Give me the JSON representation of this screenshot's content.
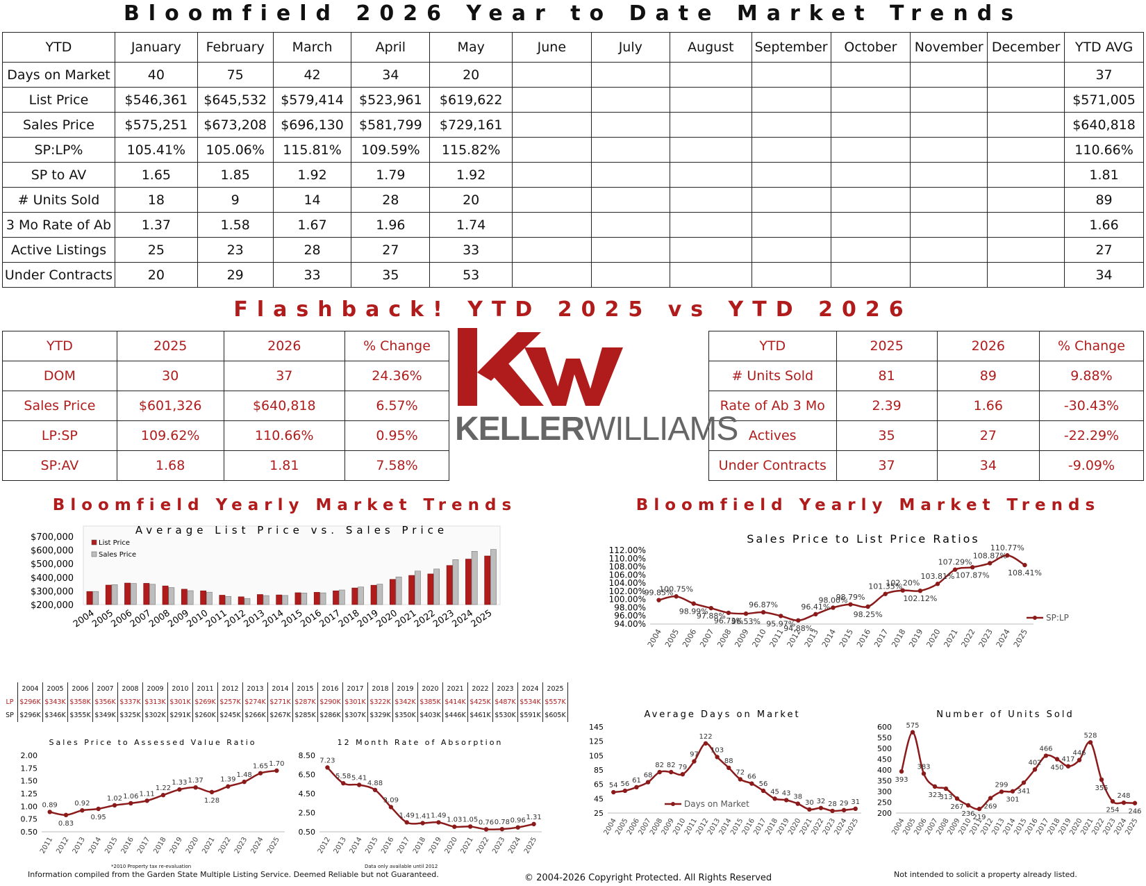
{
  "main_title": "Bloomfield 2026 Year to Date Market Trends",
  "ytd_table": {
    "headers": [
      "YTD",
      "January",
      "February",
      "March",
      "April",
      "May",
      "June",
      "July",
      "August",
      "September",
      "October",
      "November",
      "December",
      "YTD AVG"
    ],
    "rows": [
      [
        "Days on Market",
        "40",
        "75",
        "42",
        "34",
        "20",
        "",
        "",
        "",
        "",
        "",
        "",
        "",
        "37"
      ],
      [
        "List Price",
        "$546,361",
        "$645,532",
        "$579,414",
        "$523,961",
        "$619,622",
        "",
        "",
        "",
        "",
        "",
        "",
        "",
        "$571,005"
      ],
      [
        "Sales Price",
        "$575,251",
        "$673,208",
        "$696,130",
        "$581,799",
        "$729,161",
        "",
        "",
        "",
        "",
        "",
        "",
        "",
        "$640,818"
      ],
      [
        "SP:LP%",
        "105.41%",
        "105.06%",
        "115.81%",
        "109.59%",
        "115.82%",
        "",
        "",
        "",
        "",
        "",
        "",
        "",
        "110.66%"
      ],
      [
        "SP to AV",
        "1.65",
        "1.85",
        "1.92",
        "1.79",
        "1.92",
        "",
        "",
        "",
        "",
        "",
        "",
        "",
        "1.81"
      ],
      [
        "# Units Sold",
        "18",
        "9",
        "14",
        "28",
        "20",
        "",
        "",
        "",
        "",
        "",
        "",
        "",
        "89"
      ],
      [
        "3 Mo Rate of Ab",
        "1.37",
        "1.58",
        "1.67",
        "1.96",
        "1.74",
        "",
        "",
        "",
        "",
        "",
        "",
        "",
        "1.66"
      ],
      [
        "Active Listings",
        "25",
        "23",
        "28",
        "27",
        "33",
        "",
        "",
        "",
        "",
        "",
        "",
        "",
        "27"
      ],
      [
        "Under Contracts",
        "20",
        "29",
        "33",
        "35",
        "53",
        "",
        "",
        "",
        "",
        "",
        "",
        "",
        "34"
      ]
    ]
  },
  "flashback_title": "Flashback! YTD 2025 vs YTD 2026",
  "flashback_left": {
    "headers": [
      "YTD",
      "2025",
      "2026",
      "% Change"
    ],
    "rows": [
      [
        "DOM",
        "30",
        "37",
        "24.36%"
      ],
      [
        "Sales Price",
        "$601,326",
        "$640,818",
        "6.57%"
      ],
      [
        "LP:SP",
        "109.62%",
        "110.66%",
        "0.95%"
      ],
      [
        "SP:AV",
        "1.68",
        "1.81",
        "7.58%"
      ]
    ]
  },
  "flashback_right": {
    "headers": [
      "YTD",
      "2025",
      "2026",
      "% Change"
    ],
    "rows": [
      [
        "# Units Sold",
        "81",
        "89",
        "9.88%"
      ],
      [
        "Rate of Ab 3 Mo",
        "2.39",
        "1.66",
        "-30.43%"
      ],
      [
        "Actives",
        "35",
        "27",
        "-22.29%"
      ],
      [
        "Under Contracts",
        "37",
        "34",
        "-9.09%"
      ]
    ]
  },
  "logo": {
    "mark": "KW",
    "wordmark_bold": "KELLER",
    "wordmark_light": "WILLIAMS",
    "color": "#b01c1c"
  },
  "section_title_left": "Bloomfield Yearly Market Trends",
  "section_title_right": "Bloomfield Yearly Market Trends",
  "mini_table": {
    "years": [
      "2004",
      "2005",
      "2006",
      "2007",
      "2008",
      "2009",
      "2010",
      "2011",
      "2012",
      "2013",
      "2014",
      "2015",
      "2016",
      "2017",
      "2018",
      "2019",
      "2020",
      "2021",
      "2022",
      "2023",
      "2024",
      "2025"
    ],
    "lp_label": "LP",
    "sp_label": "SP",
    "lp": [
      "$296K",
      "$343K",
      "$358K",
      "$356K",
      "$337K",
      "$313K",
      "$301K",
      "$269K",
      "$257K",
      "$274K",
      "$271K",
      "$287K",
      "$290K",
      "$301K",
      "$322K",
      "$342K",
      "$385K",
      "$414K",
      "$425K",
      "$487K",
      "$534K",
      "$557K"
    ],
    "sp": [
      "$296K",
      "$346K",
      "$355K",
      "$349K",
      "$325K",
      "$302K",
      "$291K",
      "$260K",
      "$245K",
      "$266K",
      "$267K",
      "$285K",
      "$286K",
      "$307K",
      "$329K",
      "$350K",
      "$403K",
      "$446K",
      "$461K",
      "$530K",
      "$591K",
      "$605K"
    ]
  },
  "chart_data": [
    {
      "type": "bar",
      "title": "Average List Price vs. Sales Price",
      "categories": [
        "2004",
        "2005",
        "2006",
        "2007",
        "2008",
        "2009",
        "2010",
        "2011",
        "2012",
        "2013",
        "2014",
        "2015",
        "2016",
        "2017",
        "2018",
        "2019",
        "2020",
        "2021",
        "2022",
        "2023",
        "2024",
        "2025"
      ],
      "series": [
        {
          "name": "List Price",
          "color": "#b01c1c",
          "values": [
            296000,
            343000,
            358000,
            356000,
            337000,
            313000,
            301000,
            269000,
            257000,
            274000,
            271000,
            287000,
            290000,
            301000,
            322000,
            342000,
            385000,
            414000,
            425000,
            487000,
            534000,
            557000
          ]
        },
        {
          "name": "Sales Price",
          "color": "#bdbdbd",
          "values": [
            296000,
            346000,
            355000,
            349000,
            325000,
            302000,
            291000,
            260000,
            245000,
            266000,
            267000,
            285000,
            286000,
            307000,
            329000,
            350000,
            403000,
            446000,
            461000,
            530000,
            591000,
            605000
          ]
        }
      ],
      "yticks": [
        "$700,000",
        "$600,000",
        "$500,000",
        "$400,000",
        "$300,000",
        "$200,000"
      ],
      "ylim": [
        200000,
        700000
      ],
      "legend": "top-left"
    },
    {
      "type": "line",
      "title": "Sales Price to List Price Ratios",
      "categories": [
        "2004",
        "2005",
        "2006",
        "2007",
        "2008",
        "2009",
        "2010",
        "2011",
        "2012",
        "2013",
        "2014",
        "2015",
        "2016",
        "2017",
        "2018",
        "2019",
        "2020",
        "2021",
        "2022",
        "2023",
        "2024",
        "2025"
      ],
      "series": [
        {
          "name": "SP:LP",
          "color": "#8b1a1a",
          "values": [
            99.85,
            100.75,
            98.99,
            97.88,
            96.73,
            96.53,
            96.87,
            95.97,
            94.88,
            96.41,
            98.0,
            98.79,
            98.25,
            101.35,
            102.2,
            102.12,
            103.81,
            107.29,
            107.87,
            108.87,
            110.77,
            108.41
          ]
        }
      ],
      "labels": [
        "99.85%",
        "100.75%",
        "98.99%",
        "97.88%",
        "96.73%",
        "96.53%",
        "96.87%",
        "95.97%",
        "94.88%",
        "96.41%",
        "98.00%",
        "98.79%",
        "98.25%",
        "101.35%",
        "102.20%",
        "102.12%",
        "103.81%",
        "107.29%",
        "107.87%",
        "108.87%",
        "110.77%",
        "108.41%"
      ],
      "yticks": [
        "112.00%",
        "110.00%",
        "108.00%",
        "106.00%",
        "104.00%",
        "102.00%",
        "100.00%",
        "98.00%",
        "96.00%",
        "94.00%"
      ],
      "ylim": [
        94,
        112
      ],
      "legend": "right"
    },
    {
      "type": "line",
      "title": "Sales Price to Assessed Value Ratio",
      "categories": [
        "2011",
        "2012",
        "2013",
        "2014",
        "2015",
        "2016",
        "2017",
        "2018",
        "2019",
        "2020",
        "2021",
        "2022",
        "2023",
        "2024",
        "2025"
      ],
      "series": [
        {
          "name": "",
          "color": "#8b1a1a",
          "values": [
            0.89,
            0.83,
            0.92,
            0.95,
            1.02,
            1.06,
            1.11,
            1.22,
            1.33,
            1.37,
            1.28,
            1.39,
            1.48,
            1.65,
            1.7
          ]
        }
      ],
      "labels": [
        "0.89",
        "0.83",
        "0.92",
        "0.95",
        "1.02",
        "1.06",
        "1.11",
        "1.22",
        "1.33",
        "1.37",
        "1.28",
        "1.39",
        "1.48",
        "1.65",
        "1.70"
      ],
      "yticks": [
        "2.00",
        "1.75",
        "1.50",
        "1.25",
        "1.00",
        "0.75",
        "0.50"
      ],
      "ylim": [
        0.5,
        2.0
      ],
      "note": "*2010 Property tax re-evaluation"
    },
    {
      "type": "line",
      "title": "12 Month Rate of Absorption",
      "categories": [
        "2012",
        "2013",
        "2014",
        "2015",
        "2016",
        "2017",
        "2018",
        "2019",
        "2020",
        "2021",
        "2022",
        "2023",
        "2024",
        "2025"
      ],
      "series": [
        {
          "name": "",
          "color": "#8b1a1a",
          "values": [
            7.23,
            5.58,
            5.41,
            4.88,
            3.09,
            1.49,
            1.41,
            1.49,
            1.03,
            1.05,
            0.76,
            0.78,
            0.96,
            1.31
          ]
        }
      ],
      "labels": [
        "7.23",
        "5.58",
        "5.41",
        "4.88",
        "3.09",
        "1.49",
        "1.41",
        "1.49",
        "1.03",
        "1.05",
        "0.76",
        "0.78",
        "0.96",
        "1.31"
      ],
      "yticks": [
        "8.50",
        "6.50",
        "4.50",
        "2.50",
        "0.50"
      ],
      "ylim": [
        0.5,
        8.5
      ],
      "note": "Data only available until 2012"
    },
    {
      "type": "line",
      "title": "Average Days on Market",
      "categories": [
        "2004",
        "2005",
        "2006",
        "2007",
        "2008",
        "2009",
        "2010",
        "2011",
        "2012",
        "2013",
        "2014",
        "2015",
        "2016",
        "2017",
        "2018",
        "2019",
        "2020",
        "2021",
        "2022",
        "2023",
        "2024",
        "2025"
      ],
      "series": [
        {
          "name": "Days on Market",
          "color": "#8b1a1a",
          "values": [
            54,
            56,
            61,
            68,
            82,
            82,
            79,
            97,
            122,
            103,
            88,
            72,
            66,
            56,
            45,
            43,
            38,
            30,
            32,
            28,
            29,
            31
          ]
        }
      ],
      "yticks": [
        "145",
        "125",
        "105",
        "85",
        "65",
        "45",
        "25"
      ],
      "ylim": [
        25,
        145
      ],
      "legend": "bottom-center"
    },
    {
      "type": "line",
      "title": "Number of Units Sold",
      "categories": [
        "2004",
        "2005",
        "2006",
        "2007",
        "2008",
        "2009",
        "2010",
        "2011",
        "2012",
        "2013",
        "2014",
        "2015",
        "2016",
        "2017",
        "2018",
        "2019",
        "2020",
        "2021",
        "2022",
        "2023",
        "2024",
        "2025"
      ],
      "series": [
        {
          "name": "",
          "color": "#8b1a1a",
          "values": [
            393,
            575,
            383,
            323,
            313,
            267,
            236,
            219,
            269,
            299,
            301,
            341,
            402,
            466,
            450,
            417,
            446,
            528,
            355,
            254,
            248,
            246
          ]
        }
      ],
      "yticks": [
        "600",
        "550",
        "500",
        "450",
        "400",
        "350",
        "300",
        "250",
        "200"
      ],
      "ylim": [
        200,
        600
      ]
    }
  ],
  "footer": {
    "left": "Information compiled from the Garden State Multiple Listing Service.  Deemed Reliable but not Guaranteed.",
    "center": "© 2004-2026 Copyright Protected.  All Rights Reserved",
    "right": "Not intended to solicit a property already listed."
  }
}
